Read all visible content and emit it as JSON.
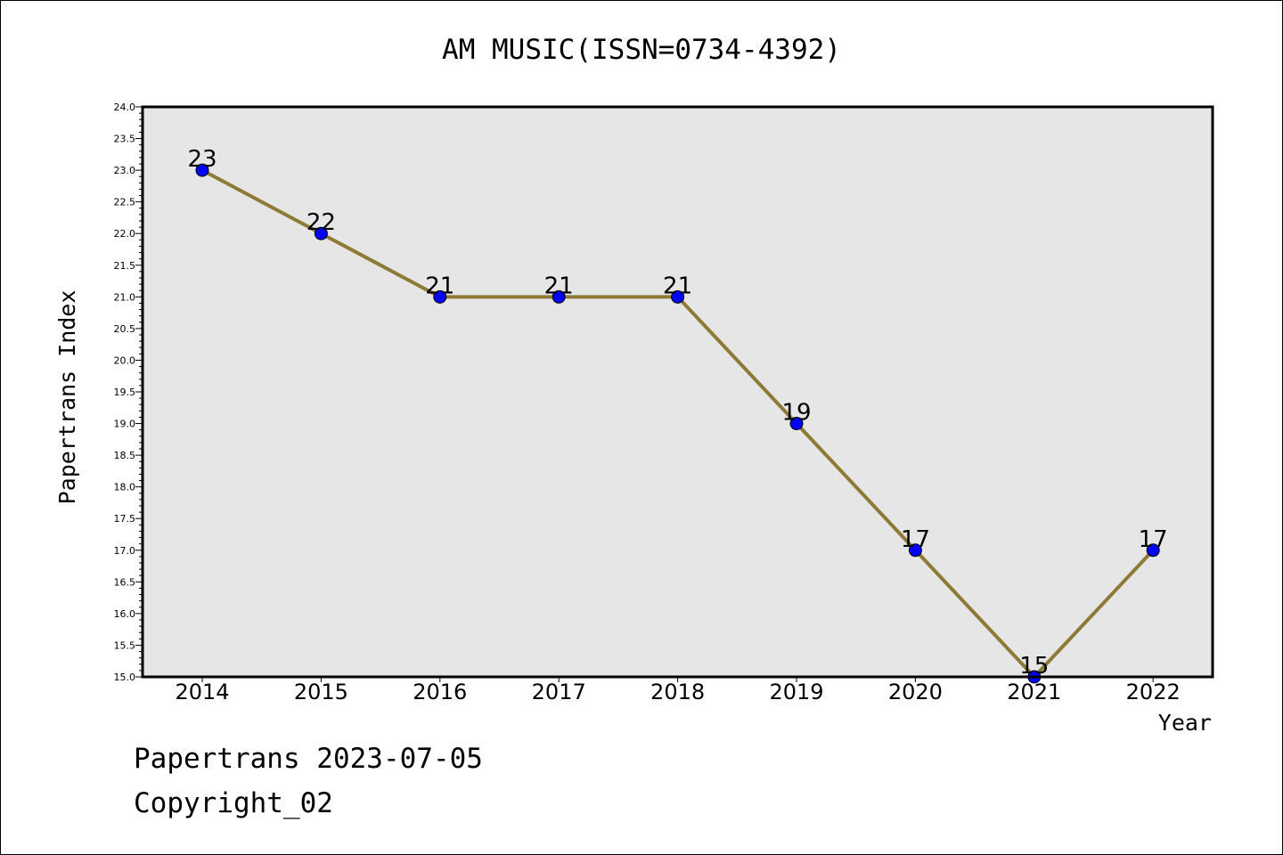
{
  "chart_data": {
    "type": "line",
    "title": "AM MUSIC(ISSN=0734-4392)",
    "xlabel": "Year",
    "ylabel": "Papertrans Index",
    "categories": [
      "2014",
      "2015",
      "2016",
      "2017",
      "2018",
      "2019",
      "2020",
      "2021",
      "2022"
    ],
    "series": [
      {
        "values": [
          23,
          22,
          21,
          21,
          21,
          19,
          17,
          15,
          17
        ],
        "line_color": "#8c7a35",
        "marker_color": "#0000ff"
      }
    ],
    "data_labels": [
      "23",
      "22",
      "21",
      "21",
      "21",
      "19",
      "17",
      "15",
      "17"
    ],
    "ylim": [
      15.0,
      24.0
    ],
    "y_major_step": 0.5,
    "y_tick_labels": [
      "15.0",
      "15.5",
      "16.0",
      "16.5",
      "17.0",
      "17.5",
      "18.0",
      "18.5",
      "19.0",
      "19.5",
      "20.0",
      "20.5",
      "21.0",
      "21.5",
      "22.0",
      "22.5",
      "23.0",
      "23.5",
      "24.0"
    ],
    "grid": false,
    "legend": "none",
    "plot_background": "#e6e6e6"
  },
  "footer": {
    "line1": "Papertrans 2023-07-05",
    "line2": "Copyright_02"
  }
}
